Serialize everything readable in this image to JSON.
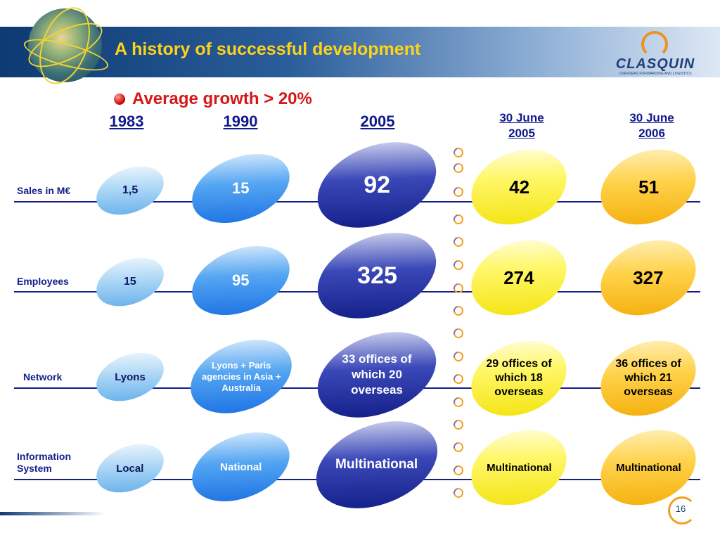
{
  "header": {
    "title": "A history of successful development"
  },
  "logo": {
    "name": "CLASQUIN",
    "tagline": "OVERSEAS FORWARDING AND LOGISTICS"
  },
  "subtitle": "Average growth > 20%",
  "columns": [
    "1983",
    "1990",
    "2005",
    "30 June 2005",
    "30 June 2006"
  ],
  "rows": [
    {
      "label": "Sales in M€",
      "values": [
        "1,5",
        "15",
        "92",
        "42",
        "51"
      ]
    },
    {
      "label": "Employees",
      "values": [
        "15",
        "95",
        "325",
        "274",
        "327"
      ]
    },
    {
      "label": "Network",
      "values": [
        "Lyons",
        "Lyons + Paris agencies in Asia + Australia",
        "33 offices of which 20 overseas",
        "29 offices of which 18 overseas",
        "36 offices of which 21 overseas"
      ]
    },
    {
      "label": "Information System",
      "values": [
        "Local",
        "National",
        "Multinational",
        "Multinational",
        "Multinational"
      ]
    }
  ],
  "colors": {
    "title": "#ffd21a",
    "subtitle": "#d41818",
    "lines": "#141d8a"
  },
  "page_number": "16"
}
